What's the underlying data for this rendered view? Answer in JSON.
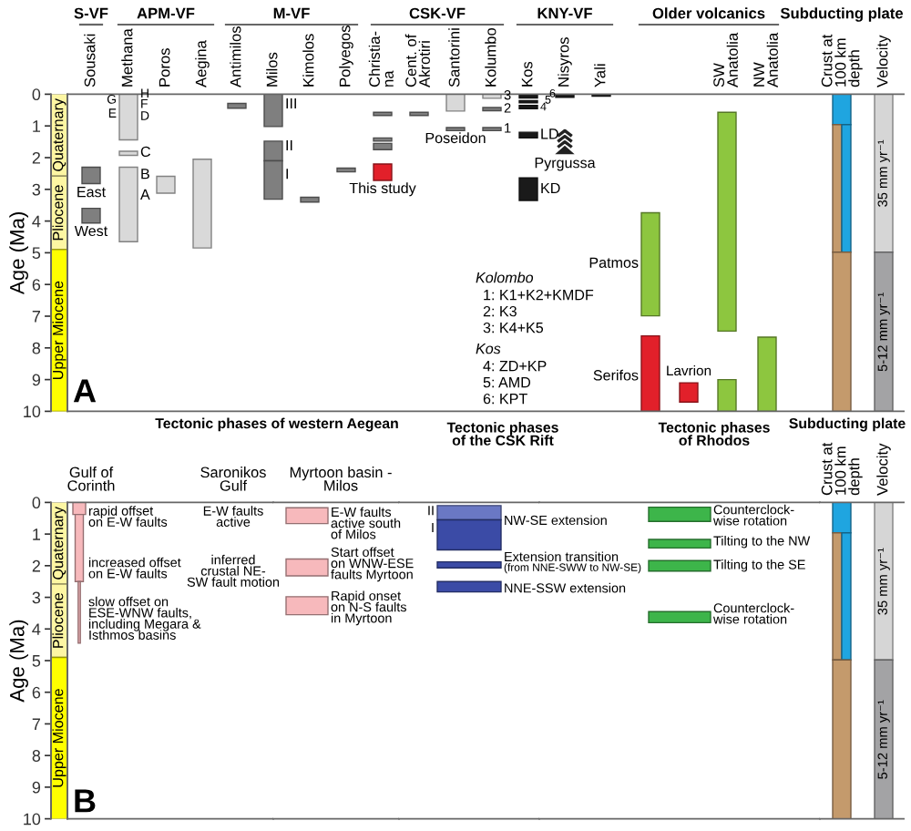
{
  "chart_data": [
    {
      "type": "bar",
      "ylabel": "Age (Ma)",
      "categories": [
        null
      ],
      "tick_labels": "y",
      "ylim": [
        10,
        0
      ],
      "yticks": [
        0,
        1,
        2,
        3,
        4,
        5,
        6,
        7,
        8,
        9,
        10
      ],
      "series": [
        {
          "name": "Quaternary",
          "color": "#fdf6a3",
          "base": [
            0
          ],
          "values": [
            2.58
          ]
        },
        {
          "name": "Pliocene",
          "color": "#fdf6a3",
          "base": [
            2.58
          ],
          "values": [
            2.32
          ]
        },
        {
          "name": "Upper Miocene",
          "color": "#ffff00",
          "base": [
            4.9
          ],
          "values": [
            5.1
          ]
        }
      ]
    },
    {
      "type": "bar",
      "tick_labels": "x",
      "categories": [
        "Sousaki",
        "Methana",
        "Poros",
        "Aegina",
        "Antimilos",
        "Milos",
        "Kimolos",
        "Polyegos",
        "Christia-\nna",
        "Cent. of\nAkrotiri",
        "Santorini",
        "Kolumbo",
        "Kos",
        "Nisyros",
        "Yali",
        null,
        null,
        "SW\nAnatolia",
        "NW\nAnatolia",
        "Crust at\n100 km\ndepth",
        "Velocity"
      ],
      "ylim": [
        10,
        0
      ],
      "series": [
        {
          "base": [
            2.3,
            0,
            2.59,
            2.05,
            0.29,
            0,
            3.25,
            2.33,
            0.57,
            0.57,
            0,
            0,
            0.04,
            0,
            0,
            3.74,
            9.1,
            0.57,
            7.66,
            0,
            0
          ],
          "values": [
            0.52,
            1.44,
            0.53,
            2.8,
            0.15,
            1.02,
            0.15,
            0.12,
            0.1,
            0.1,
            0.53,
            0.13,
            0.08,
            0.1,
            0.06,
            3.25,
            0.61,
            6.9,
            2.34,
            0.96,
            4.98
          ],
          "colors": [
            "#7f7f7f",
            "#d9d9d9",
            "#d9d9d9",
            "#d9d9d9",
            "#7f7f7f",
            "#7f7f7f",
            "#7f7f7f",
            "#7f7f7f",
            "#7f7f7f",
            "#7f7f7f",
            "#d9d9d9",
            "#d9d9d9",
            "#1a1a1a",
            "#1a1a1a",
            "#1a1a1a",
            "#8dc63f",
            "#e2202a",
            "#8dc63f",
            "#8dc63f",
            "#1fa5e0",
            "#d6d6d6"
          ]
        },
        {
          "base": [
            3.6,
            1.8,
            null,
            null,
            null,
            1.48,
            null,
            null,
            1.38,
            null,
            1.05,
            0.42,
            0.2,
            null,
            null,
            7.62,
            null,
            9.0,
            null,
            0.96,
            4.98
          ],
          "values": [
            0.46,
            0.13,
            null,
            null,
            null,
            0.62,
            null,
            null,
            0.1,
            null,
            0.1,
            0.1,
            0.07,
            null,
            null,
            2.38,
            null,
            1.0,
            null,
            4.02,
            5.02
          ],
          "colors": [
            "#7f7f7f",
            "#d9d9d9",
            null,
            null,
            null,
            "#7f7f7f",
            null,
            null,
            "#7f7f7f",
            null,
            "#7f7f7f",
            "#7f7f7f",
            "#1a1a1a",
            null,
            null,
            "#e2202a",
            null,
            "#8dc63f",
            null,
            "#c49a6c",
            "#a3a3a5"
          ]
        },
        {
          "base": [
            null,
            2.3,
            null,
            null,
            null,
            2.1,
            null,
            null,
            1.55,
            null,
            null,
            1.05,
            0.35,
            null,
            null,
            null,
            null,
            null,
            null,
            0.96,
            null
          ],
          "values": [
            null,
            2.35,
            null,
            null,
            null,
            1.21,
            null,
            null,
            0.2,
            null,
            null,
            0.1,
            0.11,
            null,
            null,
            null,
            null,
            null,
            null,
            4.02,
            null
          ],
          "colors": [
            null,
            "#d9d9d9",
            null,
            null,
            null,
            "#7f7f7f",
            null,
            null,
            "#7f7f7f",
            null,
            null,
            "#7f7f7f",
            "#1a1a1a",
            null,
            null,
            null,
            null,
            null,
            null,
            "#1fa5e0",
            null
          ]
        },
        {
          "base": [
            null,
            null,
            null,
            null,
            null,
            null,
            null,
            null,
            2.2,
            null,
            null,
            null,
            1.2,
            null,
            null,
            null,
            null,
            null,
            null,
            4.98,
            null
          ],
          "values": [
            null,
            null,
            null,
            null,
            null,
            null,
            null,
            null,
            0.52,
            null,
            null,
            null,
            0.18,
            null,
            null,
            null,
            null,
            null,
            null,
            5.02,
            null
          ],
          "colors": [
            null,
            null,
            null,
            null,
            null,
            null,
            null,
            null,
            "#e2202a",
            null,
            null,
            null,
            "#1a1a1a",
            null,
            null,
            null,
            null,
            null,
            null,
            "#c49a6c",
            null
          ]
        },
        {
          "base": [
            null,
            null,
            null,
            null,
            null,
            null,
            null,
            null,
            null,
            null,
            null,
            null,
            2.64,
            null,
            null,
            null,
            null,
            null,
            null,
            null,
            null
          ],
          "values": [
            null,
            null,
            null,
            null,
            null,
            null,
            null,
            null,
            null,
            null,
            null,
            null,
            0.71,
            null,
            null,
            null,
            null,
            null,
            null,
            null,
            null
          ],
          "colors": [
            null,
            null,
            null,
            null,
            null,
            null,
            null,
            null,
            null,
            null,
            null,
            null,
            "#1a1a1a",
            null,
            null,
            null,
            null,
            null,
            null,
            null,
            null
          ]
        }
      ],
      "annotations": [
        "S-VF",
        "APM-VF",
        "M-VF",
        "CSK-VF",
        "KNY-VF",
        "Older volcanics",
        "Subducting plate",
        "East",
        "West",
        {
          "text": "H",
          "x": "Methana",
          "y": 0
        },
        {
          "text": "F",
          "x": "Methana",
          "y": 0.33
        },
        {
          "text": "D",
          "x": "Methana",
          "y": 0.71
        },
        {
          "text": "G",
          "x": "Methana",
          "y": 0.19
        },
        {
          "text": "E",
          "x": "Methana",
          "y": 0.63
        },
        {
          "text": "C",
          "x": "Methana",
          "y": 1.85
        },
        {
          "text": "B",
          "x": "Methana",
          "y": 2.55
        },
        {
          "text": "A",
          "x": "Methana",
          "y": 3.2
        },
        {
          "text": "III",
          "x": "Milos",
          "y": 0.33
        },
        {
          "text": "II",
          "x": "Milos",
          "y": 1.65
        },
        {
          "text": "I",
          "x": "Milos",
          "y": 2.55
        },
        {
          "text": "This study",
          "x": "Christia-\nna",
          "y": 3.0
        },
        {
          "text": "Poseidon",
          "x": "Santorini",
          "y": 1.42
        },
        {
          "text": "3",
          "x": "Kolumbo",
          "y": 0.06
        },
        {
          "text": "2",
          "x": "Kolumbo",
          "y": 0.47
        },
        {
          "text": "1",
          "x": "Kolumbo",
          "y": 1.1
        },
        {
          "text": "6",
          "x": "Kos",
          "y": 0.0
        },
        {
          "text": "5",
          "x": "Kos",
          "y": 0.2
        },
        {
          "text": "4",
          "x": "Kos",
          "y": 0.42
        },
        {
          "text": "LD",
          "x": "Kos",
          "y": 1.29
        },
        {
          "text": "KD",
          "x": "Kos",
          "y": 3.0
        },
        "Pyrgussa",
        "Patmos",
        "Serifos",
        "Lavrion",
        {
          "text": "35 mm yr⁻¹",
          "x": "Velocity",
          "y": 2.5
        },
        {
          "text": "5-12 mm yr⁻¹",
          "x": "Velocity",
          "y": 7.5
        },
        "Kolombo",
        "1: K1+K2+KMDF",
        "2: K3",
        "3: K4+K5",
        "Kos",
        "4: ZD+KP",
        "5: AMD",
        "6: KPT",
        "A"
      ]
    },
    {
      "type": "bar",
      "ylabel": "Age (Ma)",
      "categories": [
        null
      ],
      "tick_labels": "y",
      "ylim": [
        10,
        0
      ],
      "yticks": [
        0,
        1,
        2,
        3,
        4,
        5,
        6,
        7,
        8,
        9,
        10
      ],
      "series": [
        {
          "name": "Quaternary",
          "color": "#fdf6a3",
          "base": [
            0
          ],
          "values": [
            2.58
          ]
        },
        {
          "name": "Pliocene",
          "color": "#fdf6a3",
          "base": [
            2.58
          ],
          "values": [
            2.32
          ]
        },
        {
          "name": "Upper Miocene",
          "color": "#ffff00",
          "base": [
            4.9
          ],
          "values": [
            5.1
          ]
        }
      ]
    },
    {
      "type": "bar",
      "tick_labels": "x",
      "categories": [
        "Gulf of\nCorinth",
        "Saronikos\nGulf"
      ],
      "ylim": [
        10,
        0
      ],
      "series": [
        {
          "color": "#f7b9bc",
          "base": [
            0,
            null
          ],
          "values": [
            0.38,
            null
          ]
        },
        {
          "color": "#f7b9bc",
          "base": [
            0.38,
            null
          ],
          "values": [
            2.12,
            null
          ]
        },
        {
          "color": "#f7b9bc",
          "base": [
            2.5,
            null
          ],
          "values": [
            1.95,
            null
          ]
        }
      ],
      "annotations": [
        "Tectonic phases of western Aegean",
        "rapid offset\non E-W faults",
        "increased offset\non E-W faults",
        "slow offset on\nESE-WNW faults,\nincluding Megara &\nIsthmos basins",
        "E-W faults\nactive",
        "inferred\ncrustal NE-\nSW fault motion",
        "B"
      ]
    },
    {
      "type": "bar",
      "tick_labels": "x",
      "categories": [
        "Myrtoon basin -\nMilos"
      ],
      "ylim": [
        10,
        0
      ],
      "series": [
        {
          "color": "#f7b9bc",
          "base": [
            0.17
          ],
          "values": [
            0.5
          ]
        },
        {
          "color": "#f7b9bc",
          "base": [
            1.79
          ],
          "values": [
            0.53
          ]
        },
        {
          "color": "#f7b9bc",
          "base": [
            2.98
          ],
          "values": [
            0.57
          ]
        }
      ],
      "annotations": [
        "E-W faults\nactive south\nof Milos",
        "Start offset\non WNW-ESE\nfaults Myrtoon",
        "Rapid onset\non N-S faults\nin Myrtoon"
      ]
    },
    {
      "type": "bar",
      "tick_labels": "x",
      "categories": [
        "Tectonic phases\nof the CSK Rift"
      ],
      "ylim": [
        10,
        0
      ],
      "series": [
        {
          "color": "#6a78c4",
          "base": [
            0.1
          ],
          "values": [
            0.45
          ]
        },
        {
          "color": "#3b4ba6",
          "base": [
            0.55
          ],
          "values": [
            0.95
          ]
        },
        {
          "color": "#3b4ba6",
          "base": [
            1.88
          ],
          "values": [
            0.19
          ]
        },
        {
          "color": "#3b4ba6",
          "base": [
            2.5
          ],
          "values": [
            0.33
          ]
        }
      ],
      "annotations": [
        "II",
        "I",
        "NW-SE extension",
        "Extension transition",
        "(from NNE-SWW to NW-SE)",
        "NNE-SSW extension"
      ]
    },
    {
      "type": "bar",
      "tick_labels": "x",
      "categories": [
        "Tectonic phases\nof Rhodos"
      ],
      "ylim": [
        10,
        0
      ],
      "series": [
        {
          "color": "#3db54a",
          "base": [
            0.15
          ],
          "values": [
            0.45
          ]
        },
        {
          "color": "#3db54a",
          "base": [
            1.17
          ],
          "values": [
            0.27
          ]
        },
        {
          "color": "#3db54a",
          "base": [
            1.84
          ],
          "values": [
            0.33
          ]
        },
        {
          "color": "#3db54a",
          "base": [
            3.45
          ],
          "values": [
            0.35
          ]
        }
      ],
      "annotations": [
        "Counterclock-\nwise rotation",
        "Tilting to the NW",
        "Tilting to the SE",
        "Counterclock-\nwise rotation"
      ]
    },
    {
      "type": "bar",
      "tick_labels": "x",
      "categories": [
        "Crust at\n100 km\ndepth",
        "Velocity"
      ],
      "ylim": [
        10,
        0
      ],
      "series": [
        {
          "base": [
            0,
            0
          ],
          "values": [
            0.96,
            4.98
          ],
          "colors": [
            "#1fa5e0",
            "#d6d6d6"
          ]
        },
        {
          "base": [
            0.96,
            4.98
          ],
          "values": [
            4.02,
            5.02
          ],
          "colors": [
            "#c49a6c",
            "#a3a3a5"
          ]
        },
        {
          "base": [
            0.96,
            null
          ],
          "values": [
            4.02,
            null
          ],
          "colors": [
            "#1fa5e0",
            null
          ]
        },
        {
          "base": [
            4.98,
            null
          ],
          "values": [
            5.02,
            null
          ],
          "colors": [
            "#c49a6c",
            null
          ]
        }
      ],
      "annotations": [
        "Subducting plate",
        "35 mm yr⁻¹",
        "5-12 mm yr⁻¹"
      ]
    }
  ]
}
